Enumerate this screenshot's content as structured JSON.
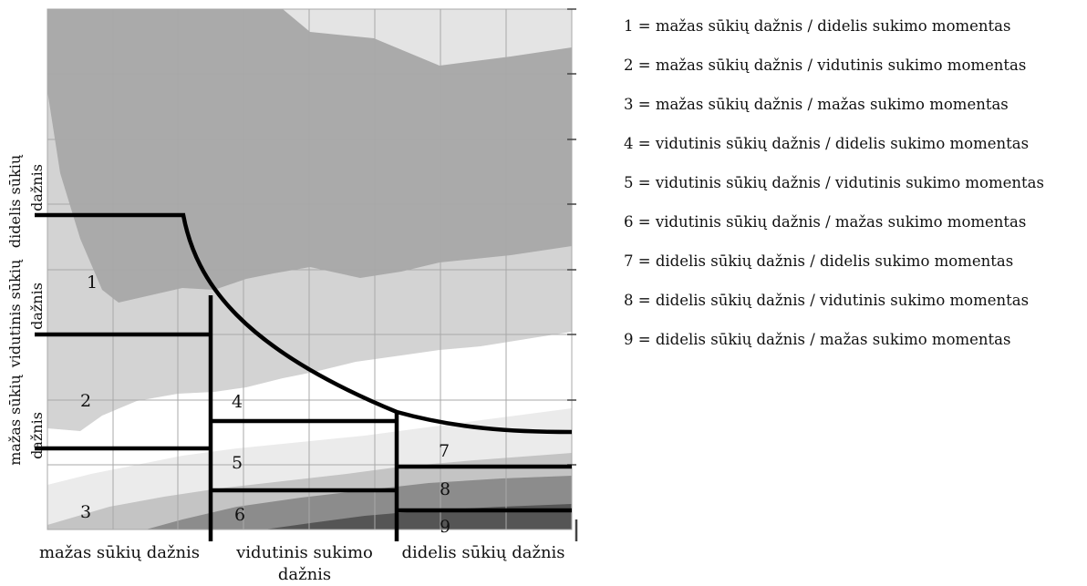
{
  "zone_labels": [
    "1",
    "2",
    "3",
    "4",
    "5",
    "6",
    "7",
    "8",
    "9"
  ],
  "x_labels": {
    "low": "mažas sūkių dažnis",
    "mid_line1": "vidutinis sukimo",
    "mid_line2": "dažnis",
    "high": "didelis sūkių dažnis"
  },
  "y_labels": {
    "high_line1": "didelis sūkių",
    "high_line2": "dažnis",
    "mid_line1": "vidutinis sūkių",
    "mid_line2": "dažnis",
    "low_line1": "mažas sūkių",
    "low_line2": "dažnis"
  },
  "legend": [
    "1 = mažas sūkių dažnis / didelis sukimo momentas",
    "2 = mažas sūkių dažnis / vidutinis sukimo momentas",
    "3 = mažas sūkių dažnis / mažas sukimo momentas",
    "4 = vidutinis sūkių dažnis / didelis sukimo momentas",
    "5 = vidutinis sūkių dažnis / vidutinis sukimo momentas",
    "6 = vidutinis sūkių dažnis / mažas sukimo momentas",
    "7 = didelis sūkių dažnis / didelis sukimo momentas",
    "8 = didelis sūkių dažnis / vidutinis sukimo momentas",
    "9 = didelis sūkių dažnis / mažas sukimo momentas"
  ],
  "colors": {
    "band_lightest": "#e4e4e4",
    "band_dark": "#aaaaaa",
    "band_light": "#d3d3d3",
    "band_white": "#ffffff",
    "band_pale": "#ebebeb",
    "band_mid": "#c4c4c4",
    "band_darker": "#8c8c8c",
    "band_darkest": "#555555",
    "line": "#000000",
    "grid": "#a8a8a8"
  }
}
